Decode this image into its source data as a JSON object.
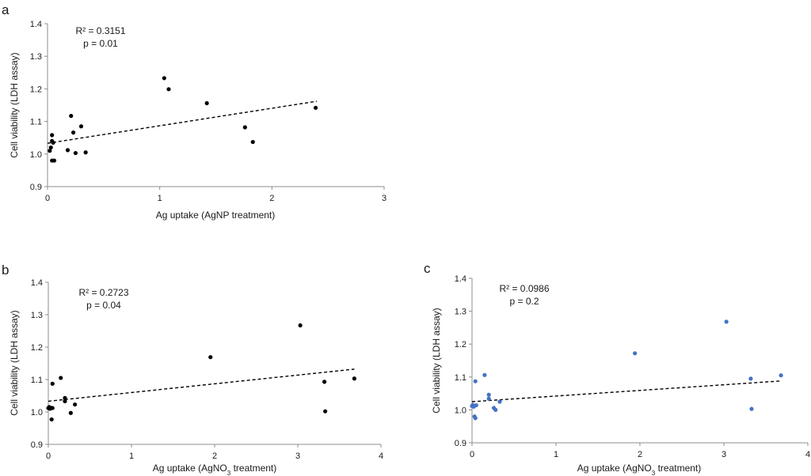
{
  "chart_data": [
    {
      "panel": "a",
      "type": "scatter",
      "title": "",
      "xlabel": "Ag uptake (AgNP treatment)",
      "ylabel": "Cell viability (LDH assay)",
      "xlim": [
        0,
        3
      ],
      "ylim": [
        0.9,
        1.4
      ],
      "xticks": [
        0,
        1,
        2,
        3
      ],
      "yticks": [
        0.9,
        1.0,
        1.1,
        1.2,
        1.3,
        1.4
      ],
      "marker_color": "#000000",
      "annotation": {
        "r2": "R² = 0.3151",
        "p": "p = 0.01"
      },
      "trendline": {
        "x": [
          0,
          2.4
        ],
        "y": [
          1.033,
          1.162
        ],
        "style": "dashed"
      },
      "points": [
        {
          "x": 0.02,
          "y": 1.01
        },
        {
          "x": 0.03,
          "y": 1.02
        },
        {
          "x": 0.04,
          "y": 1.058
        },
        {
          "x": 0.04,
          "y": 1.04
        },
        {
          "x": 0.04,
          "y": 0.98
        },
        {
          "x": 0.05,
          "y": 1.035
        },
        {
          "x": 0.06,
          "y": 0.98
        },
        {
          "x": 0.18,
          "y": 1.012
        },
        {
          "x": 0.21,
          "y": 1.117
        },
        {
          "x": 0.23,
          "y": 1.066
        },
        {
          "x": 0.25,
          "y": 1.003
        },
        {
          "x": 0.3,
          "y": 1.085
        },
        {
          "x": 0.34,
          "y": 1.005
        },
        {
          "x": 1.04,
          "y": 1.233
        },
        {
          "x": 1.08,
          "y": 1.199
        },
        {
          "x": 1.42,
          "y": 1.156
        },
        {
          "x": 1.76,
          "y": 1.082
        },
        {
          "x": 1.83,
          "y": 1.037
        },
        {
          "x": 2.39,
          "y": 1.142
        }
      ]
    },
    {
      "panel": "b",
      "type": "scatter",
      "title": "",
      "xlabel_main": "Ag uptake (AgNO",
      "xlabel_sub": "3",
      "xlabel_tail": " treatment)",
      "ylabel": "Cell viability (LDH assay)",
      "xlim": [
        0,
        4
      ],
      "ylim": [
        0.9,
        1.4
      ],
      "xticks": [
        0,
        1,
        2,
        3,
        4
      ],
      "yticks": [
        0.9,
        1.0,
        1.1,
        1.2,
        1.3,
        1.4
      ],
      "marker_color": "#000000",
      "annotation": {
        "r2": "R² = 0.2723",
        "p": "p = 0.04"
      },
      "trendline": {
        "x": [
          0,
          3.68
        ],
        "y": [
          1.033,
          1.132
        ],
        "style": "dashed"
      },
      "points": [
        {
          "x": 0.0,
          "y": 1.012
        },
        {
          "x": 0.01,
          "y": 1.015
        },
        {
          "x": 0.02,
          "y": 1.01
        },
        {
          "x": 0.03,
          "y": 1.013
        },
        {
          "x": 0.04,
          "y": 0.977
        },
        {
          "x": 0.05,
          "y": 1.087
        },
        {
          "x": 0.05,
          "y": 1.012
        },
        {
          "x": 0.15,
          "y": 1.105
        },
        {
          "x": 0.2,
          "y": 1.043
        },
        {
          "x": 0.2,
          "y": 1.033
        },
        {
          "x": 0.27,
          "y": 0.997
        },
        {
          "x": 0.32,
          "y": 1.023
        },
        {
          "x": 1.95,
          "y": 1.169
        },
        {
          "x": 3.03,
          "y": 1.267
        },
        {
          "x": 3.32,
          "y": 1.093
        },
        {
          "x": 3.33,
          "y": 1.002
        },
        {
          "x": 3.68,
          "y": 1.103
        }
      ]
    },
    {
      "panel": "c",
      "type": "scatter",
      "title": "",
      "xlabel_main": "Ag uptake (AgNO",
      "xlabel_sub": "3",
      "xlabel_tail": " treatment)",
      "ylabel": "Cell viability (LDH assay)",
      "xlim": [
        0,
        4
      ],
      "ylim": [
        0.9,
        1.4
      ],
      "xticks": [
        0,
        1,
        2,
        3,
        4
      ],
      "yticks": [
        0.9,
        1.0,
        1.1,
        1.2,
        1.3,
        1.4
      ],
      "marker_color": "#4472c4",
      "annotation": {
        "r2": "R² = 0.0986",
        "p": "p = 0.2"
      },
      "trendline": {
        "x": [
          0,
          3.68
        ],
        "y": [
          1.025,
          1.088
        ],
        "style": "dashed"
      },
      "points": [
        {
          "x": 0.0,
          "y": 1.012
        },
        {
          "x": 0.01,
          "y": 1.015
        },
        {
          "x": 0.02,
          "y": 1.01
        },
        {
          "x": 0.03,
          "y": 0.98
        },
        {
          "x": 0.04,
          "y": 0.975
        },
        {
          "x": 0.04,
          "y": 1.087
        },
        {
          "x": 0.05,
          "y": 1.014
        },
        {
          "x": 0.15,
          "y": 1.106
        },
        {
          "x": 0.2,
          "y": 1.046
        },
        {
          "x": 0.2,
          "y": 1.034
        },
        {
          "x": 0.26,
          "y": 1.006
        },
        {
          "x": 0.28,
          "y": 1.0
        },
        {
          "x": 0.33,
          "y": 1.025
        },
        {
          "x": 1.94,
          "y": 1.172
        },
        {
          "x": 3.03,
          "y": 1.268
        },
        {
          "x": 3.32,
          "y": 1.095
        },
        {
          "x": 3.33,
          "y": 1.003
        },
        {
          "x": 3.68,
          "y": 1.105
        }
      ]
    }
  ]
}
